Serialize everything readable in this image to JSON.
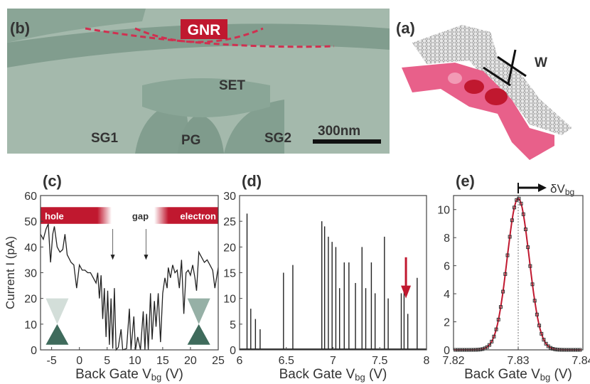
{
  "sem": {
    "panel_label": "(b)",
    "gnr_label": "GNR",
    "set_label": "SET",
    "sg1_label": "SG1",
    "pg_label": "PG",
    "sg2_label": "SG2",
    "scale_label": "300nm"
  },
  "schematic": {
    "panel_label": "(a)",
    "width_label": "W"
  },
  "colors": {
    "red": "#c0182f",
    "pink": "#e8608a",
    "sem_bg": "#a4b9ac",
    "sem_dark": "#819d8e"
  },
  "chart_data": [
    {
      "panel_label": "(c)",
      "type": "line",
      "xlabel": "Back Gate V",
      "xlabel_sub": "bg",
      "xlabel_unit": " (V)",
      "ylabel": "Current I (pA)",
      "xlim": [
        -7,
        25
      ],
      "ylim": [
        0,
        60
      ],
      "xticks": [
        "-5",
        "0",
        "5",
        "10",
        "15",
        "20",
        "25"
      ],
      "xtick_values": [
        -5,
        0,
        5,
        10,
        15,
        20,
        25
      ],
      "yticks": [
        "0",
        "10",
        "20",
        "30",
        "40",
        "50",
        "60"
      ],
      "ytick_values": [
        0,
        10,
        20,
        30,
        40,
        50,
        60
      ],
      "band": {
        "hole": "hole",
        "gap": "gap",
        "electron": "electron"
      },
      "arrows_x": [
        6,
        12
      ],
      "series": [
        {
          "name": "current",
          "points": [
            [
              -7,
              45
            ],
            [
              -6.5,
              43
            ],
            [
              -6,
              47
            ],
            [
              -5.6,
              49
            ],
            [
              -5.2,
              34
            ],
            [
              -4.8,
              45
            ],
            [
              -4.5,
              48
            ],
            [
              -4,
              40
            ],
            [
              -3.5,
              38
            ],
            [
              -3,
              39
            ],
            [
              -2.6,
              45
            ],
            [
              -2.2,
              37
            ],
            [
              -1.5,
              34
            ],
            [
              -1,
              33
            ],
            [
              -0.5,
              24
            ],
            [
              0,
              33
            ],
            [
              0.5,
              31
            ],
            [
              1,
              31
            ],
            [
              1.5,
              30
            ],
            [
              2,
              30
            ],
            [
              2.5,
              28
            ],
            [
              3,
              26
            ],
            [
              3.3,
              30
            ],
            [
              3.6,
              20
            ],
            [
              3.9,
              29
            ],
            [
              4.2,
              12
            ],
            [
              4.5,
              24
            ],
            [
              4.8,
              5
            ],
            [
              5.1,
              23
            ],
            [
              5.4,
              2
            ],
            [
              5.7,
              20
            ],
            [
              6,
              0.5
            ],
            [
              6.3,
              24
            ],
            [
              6.6,
              0
            ],
            [
              7,
              1
            ],
            [
              7.5,
              8
            ],
            [
              7.8,
              0
            ],
            [
              8.5,
              0.5
            ],
            [
              9,
              16
            ],
            [
              9.3,
              0
            ],
            [
              9.8,
              13
            ],
            [
              10.1,
              0
            ],
            [
              10.5,
              5
            ],
            [
              11,
              0
            ],
            [
              11.5,
              15
            ],
            [
              11.8,
              0
            ],
            [
              12.1,
              14
            ],
            [
              12.4,
              0
            ],
            [
              12.8,
              22
            ],
            [
              13.1,
              4
            ],
            [
              13.5,
              19
            ],
            [
              13.8,
              9
            ],
            [
              14.2,
              22
            ],
            [
              14.6,
              3
            ],
            [
              15,
              22
            ],
            [
              15.4,
              28
            ],
            [
              15.8,
              24
            ],
            [
              16,
              32
            ],
            [
              16.4,
              28
            ],
            [
              16.8,
              33
            ],
            [
              17.2,
              30
            ],
            [
              17.6,
              31
            ],
            [
              18,
              24
            ],
            [
              18.4,
              35
            ],
            [
              18.8,
              14
            ],
            [
              19.2,
              30
            ],
            [
              19.6,
              31
            ],
            [
              20,
              29
            ],
            [
              20.4,
              33
            ],
            [
              20.8,
              28
            ],
            [
              21.1,
              23
            ],
            [
              21.5,
              38
            ],
            [
              22,
              36
            ],
            [
              22.5,
              34
            ],
            [
              23,
              35
            ],
            [
              23.5,
              33
            ],
            [
              24,
              31
            ],
            [
              24.4,
              24
            ],
            [
              25,
              32
            ]
          ]
        }
      ]
    },
    {
      "panel_label": "(d)",
      "type": "line",
      "xlabel": "Back Gate V",
      "xlabel_sub": "bg",
      "xlabel_unit": " (V)",
      "xlim": [
        6,
        8
      ],
      "ylim": [
        0,
        30
      ],
      "xticks": [
        "6",
        "6.5",
        "7",
        "7.5",
        "8"
      ],
      "xtick_values": [
        6,
        6.5,
        7,
        7.5,
        8
      ],
      "yticks": [
        "0",
        "5",
        "10",
        "15",
        "20",
        "25",
        "30"
      ],
      "ytick_values": [
        0,
        5,
        10,
        15,
        20,
        25,
        30
      ],
      "arrow_x": 7.78,
      "peaks": [
        [
          6.08,
          26.5
        ],
        [
          6.12,
          8
        ],
        [
          6.17,
          6
        ],
        [
          6.22,
          4
        ],
        [
          6.47,
          15
        ],
        [
          6.57,
          16.5
        ],
        [
          6.88,
          25
        ],
        [
          6.91,
          24
        ],
        [
          6.95,
          22
        ],
        [
          6.99,
          21
        ],
        [
          7.03,
          20
        ],
        [
          7.07,
          12
        ],
        [
          7.12,
          17
        ],
        [
          7.17,
          17
        ],
        [
          7.24,
          13
        ],
        [
          7.31,
          20
        ],
        [
          7.35,
          12
        ],
        [
          7.41,
          17
        ],
        [
          7.45,
          11
        ],
        [
          7.55,
          22
        ],
        [
          7.59,
          10
        ],
        [
          7.73,
          11
        ],
        [
          7.76,
          12
        ],
        [
          7.8,
          7
        ],
        [
          7.9,
          14
        ]
      ]
    },
    {
      "panel_label": "(e)",
      "type": "scatter",
      "xlabel": "Back Gate V",
      "xlabel_sub": "bg",
      "xlabel_unit": " (V)",
      "annotation": "δV",
      "annotation_sub": "bg",
      "xlim": [
        7.82,
        7.84
      ],
      "ylim": [
        0,
        11
      ],
      "xticks": [
        "7.82",
        "7.83",
        "7.84"
      ],
      "xtick_values": [
        7.82,
        7.83,
        7.84
      ],
      "yticks": [
        "0",
        "2",
        "4",
        "6",
        "8",
        "10"
      ],
      "ytick_values": [
        0,
        2,
        4,
        6,
        8,
        10
      ],
      "fit": {
        "center": 7.83,
        "amplitude": 10.8,
        "sigma": 0.0017
      },
      "dashed_x": 7.83
    }
  ]
}
